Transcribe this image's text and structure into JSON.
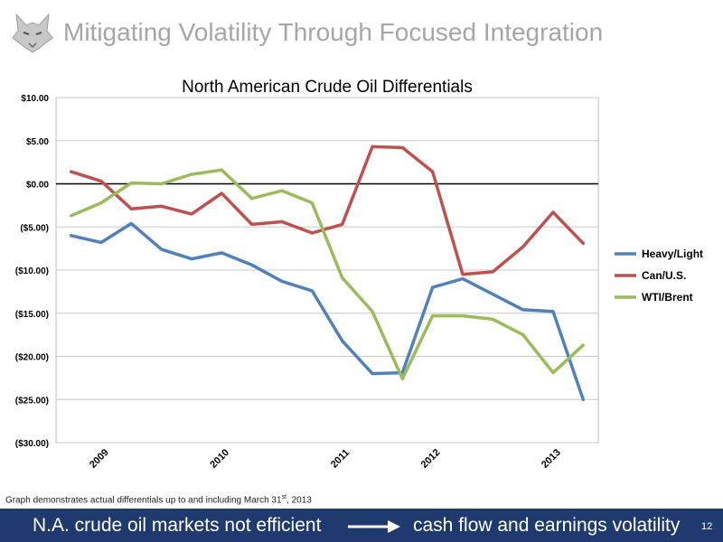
{
  "header": {
    "title": "Mitigating Volatility Through Focused Integration",
    "logo_icon": "wolf-head-logo"
  },
  "chart_data": {
    "type": "line",
    "title": "North American Crude Oil Differentials",
    "xlabel": "",
    "ylabel": "",
    "ylim": [
      -30,
      10
    ],
    "yticks": [
      10,
      5,
      0,
      -5,
      -10,
      -15,
      -20,
      -25,
      -30
    ],
    "ytick_labels": [
      "$10.00",
      "$5.00",
      "$0.00",
      "($5.00)",
      "($10.00)",
      "($15.00)",
      "($20.00)",
      "($25.00)",
      "($30.00)"
    ],
    "x_tick_labels": [
      {
        "label": "2009",
        "at_point": 1
      },
      {
        "label": "2010",
        "at_point": 5
      },
      {
        "label": "2011",
        "at_point": 9
      },
      {
        "label": "2012",
        "at_point": 12
      },
      {
        "label": "2013",
        "at_point": 16
      }
    ],
    "grid": true,
    "legend_position": "right",
    "series": [
      {
        "name": "Heavy/Light",
        "color": "#4f81bd",
        "values": [
          -6.0,
          -6.8,
          -4.6,
          -7.6,
          -8.7,
          -8.0,
          -9.4,
          -11.3,
          -12.4,
          -18.2,
          -22.0,
          -21.9,
          -12.0,
          -11.0,
          -12.8,
          -14.6,
          -14.8,
          -25.0
        ]
      },
      {
        "name": "Can/U.S.",
        "color": "#c0504d",
        "values": [
          1.4,
          0.3,
          -2.9,
          -2.6,
          -3.5,
          -1.1,
          -4.7,
          -4.4,
          -5.7,
          -4.7,
          4.3,
          4.2,
          1.4,
          -10.5,
          -10.2,
          -7.3,
          -3.3,
          -6.9
        ]
      },
      {
        "name": "WTI/Brent",
        "color": "#9bbb59",
        "values": [
          -3.7,
          -2.2,
          0.1,
          0.0,
          1.1,
          1.6,
          -1.7,
          -0.8,
          -2.2,
          -10.9,
          -14.8,
          -22.6,
          -15.3,
          -15.3,
          -15.7,
          -17.5,
          -21.9,
          -18.7
        ]
      }
    ]
  },
  "footnote": {
    "text": "Graph  demonstrates actual differentials up to and including March 31",
    "sup": "st",
    "suffix": ", 2013"
  },
  "banner": {
    "left": "N.A. crude oil markets not efficient",
    "right": "cash flow and earnings volatility",
    "page_number": "12",
    "arrow_icon": "right-arrow-icon"
  }
}
